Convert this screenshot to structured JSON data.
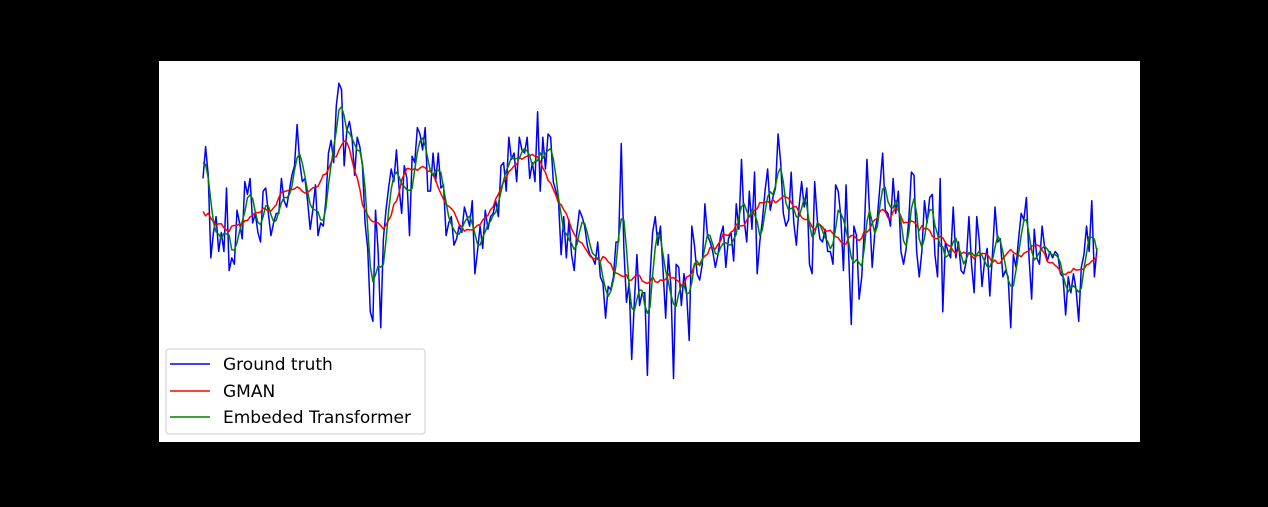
{
  "colors": {
    "figure_background": "#000000",
    "axes_background": "#ffffff"
  },
  "chart_data": {
    "type": "line",
    "title": "",
    "xlabel": "",
    "ylabel": "",
    "grid": false,
    "legend_position": "lower-left",
    "xlim": [
      0,
      288
    ],
    "ylim": [
      0,
      120
    ],
    "series": [
      {
        "name": "Ground truth",
        "color": "#0000ff",
        "values": [
          83,
          93,
          84,
          58,
          66,
          71,
          60,
          66,
          60,
          80,
          54,
          58,
          56,
          73,
          69,
          64,
          82,
          78,
          83,
          69,
          72,
          66,
          63,
          79,
          80,
          72,
          65,
          69,
          72,
          72,
          83,
          76,
          74,
          79,
          84,
          87,
          100,
          88,
          82,
          83,
          76,
          67,
          73,
          81,
          65,
          69,
          68,
          76,
          91,
          95,
          88,
          106,
          113,
          111,
          87,
          98,
          101,
          96,
          84,
          96,
          93,
          87,
          69,
          61,
          41,
          38,
          73,
          60,
          36,
          64,
          73,
          80,
          86,
          82,
          92,
          80,
          72,
          87,
          83,
          65,
          90,
          88,
          99,
          97,
          92,
          99,
          79,
          79,
          91,
          82,
          91,
          80,
          81,
          65,
          69,
          71,
          62,
          64,
          68,
          66,
          74,
          71,
          68,
          76,
          53,
          60,
          68,
          61,
          73,
          67,
          71,
          72,
          76,
          71,
          87,
          88,
          79,
          96,
          89,
          91,
          82,
          96,
          92,
          91,
          96,
          83,
          88,
          82,
          104,
          79,
          96,
          86,
          97,
          96,
          82,
          79,
          76,
          59,
          71,
          58,
          70,
          59,
          54,
          66,
          73,
          71,
          68,
          62,
          59,
          58,
          56,
          63,
          52,
          50,
          39,
          49,
          48,
          52,
          63,
          63,
          94,
          61,
          44,
          50,
          26,
          44,
          59,
          43,
          47,
          47,
          21,
          52,
          66,
          71,
          62,
          68,
          54,
          39,
          59,
          49,
          20,
          56,
          55,
          43,
          53,
          47,
          32,
          68,
          62,
          53,
          51,
          56,
          75,
          65,
          63,
          60,
          55,
          59,
          65,
          68,
          55,
          64,
          66,
          57,
          75,
          67,
          89,
          70,
          63,
          79,
          67,
          85,
          53,
          63,
          70,
          79,
          86,
          73,
          77,
          80,
          97,
          88,
          72,
          68,
          70,
          85,
          69,
          62,
          74,
          82,
          74,
          80,
          56,
          53,
          82,
          70,
          64,
          63,
          67,
          60,
          60,
          56,
          81,
          79,
          71,
          54,
          81,
          59,
          37,
          68,
          65,
          45,
          52,
          67,
          89,
          72,
          55,
          66,
          71,
          81,
          91,
          73,
          72,
          68,
          83,
          72,
          79,
          60,
          56,
          61,
          70,
          85,
          84,
          60,
          52,
          60,
          76,
          69,
          77,
          78,
          59,
          52,
          83,
          41,
          63,
          60,
          58,
          74,
          58,
          63,
          54,
          53,
          57,
          71,
          56,
          47,
          71,
          63,
          49,
          57,
          61,
          46,
          59,
          74,
          63,
          64,
          52,
          54,
          52,
          36,
          59,
          55,
          64,
          72,
          70,
          77,
          58,
          45,
          67,
          58,
          56,
          68,
          61,
          57,
          60,
          58,
          60,
          59,
          53,
          52,
          40,
          52,
          47,
          53,
          48,
          38,
          55,
          59,
          68,
          60,
          76,
          52,
          61
        ],
        "data_units_note": ""
      }
    ]
  },
  "legend": {
    "items": [
      {
        "label": "Ground truth",
        "color": "#0000ff"
      },
      {
        "label": "GMAN",
        "color": "#ff0000"
      },
      {
        "label": "Embeded Transformer",
        "color": "#008000"
      }
    ]
  }
}
